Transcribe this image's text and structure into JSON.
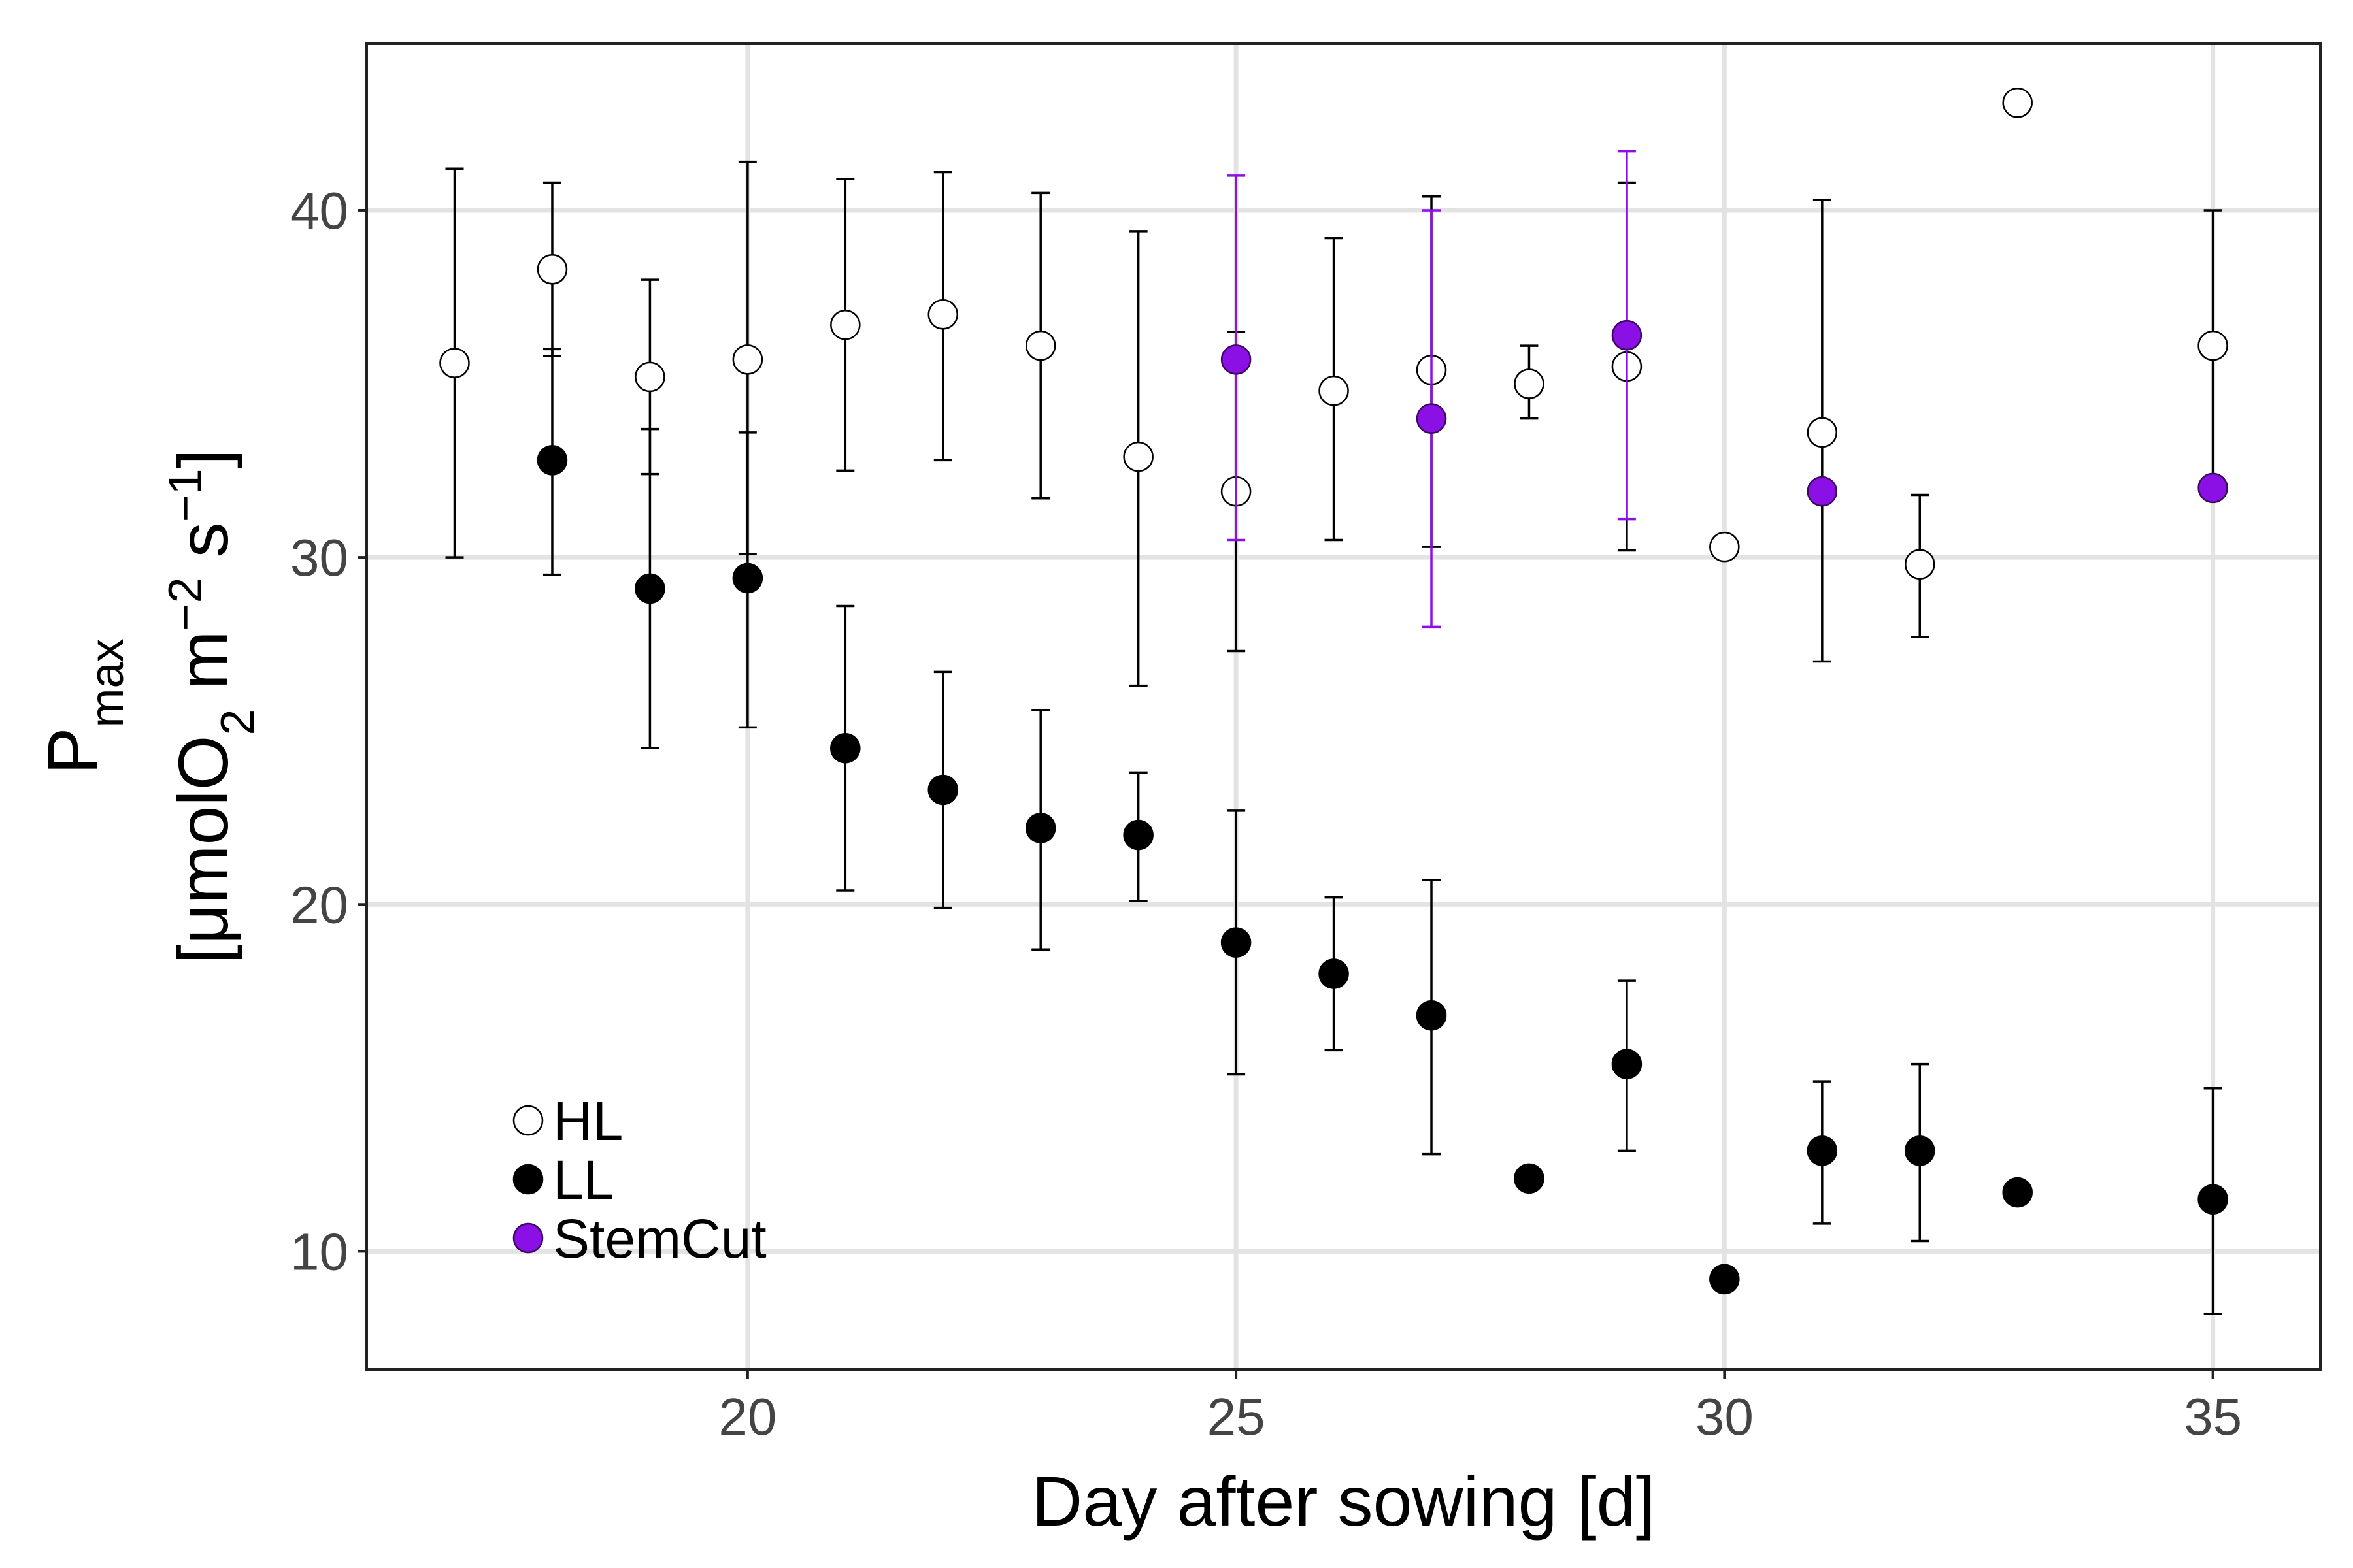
{
  "chart_data": {
    "type": "scatter",
    "xlabel": "Day after sowing [d]",
    "ylabel": {
      "line1_main": "P",
      "line1_sub": "max",
      "line2_prefix": "[μmolO",
      "line2_sub": "2",
      "line2_mid": " m",
      "line2_sup1": "−2",
      "line2_mid2": " s",
      "line2_sup2": "−1",
      "line2_suffix": "]"
    },
    "xlim": [
      16.1,
      36.1
    ],
    "ylim": [
      6.6,
      44.8
    ],
    "xticks": [
      20,
      25,
      30,
      35
    ],
    "yticks": [
      10,
      20,
      30,
      40
    ],
    "grid": true,
    "legend_position": "bottom-left",
    "series": [
      {
        "name": "HL",
        "fill": "#ffffff",
        "stroke": "#000000",
        "error_color": "#000000",
        "points": [
          {
            "x": 17,
            "y": 35.6,
            "lo": 30.0,
            "hi": 41.2
          },
          {
            "x": 18,
            "y": 38.3,
            "lo": 35.8,
            "hi": 40.8
          },
          {
            "x": 19,
            "y": 35.2,
            "lo": 32.4,
            "hi": 38.0
          },
          {
            "x": 20,
            "y": 35.7,
            "lo": 30.1,
            "hi": 41.4
          },
          {
            "x": 21,
            "y": 36.7,
            "lo": 32.5,
            "hi": 40.9
          },
          {
            "x": 22,
            "y": 37.0,
            "lo": 32.8,
            "hi": 41.1
          },
          {
            "x": 23,
            "y": 36.1,
            "lo": 31.7,
            "hi": 40.5
          },
          {
            "x": 24,
            "y": 32.9,
            "lo": 26.3,
            "hi": 39.4
          },
          {
            "x": 25,
            "y": 31.9,
            "lo": 27.3,
            "hi": 36.5
          },
          {
            "x": 26,
            "y": 34.8,
            "lo": 30.5,
            "hi": 39.2
          },
          {
            "x": 27,
            "y": 35.4,
            "lo": 30.3,
            "hi": 40.4
          },
          {
            "x": 28,
            "y": 35.0,
            "lo": 34.0,
            "hi": 36.1
          },
          {
            "x": 29,
            "y": 35.5,
            "lo": 30.2,
            "hi": 40.8
          },
          {
            "x": 30,
            "y": 30.3
          },
          {
            "x": 31,
            "y": 33.6,
            "lo": 27.0,
            "hi": 40.3
          },
          {
            "x": 32,
            "y": 29.8,
            "lo": 27.7,
            "hi": 31.8
          },
          {
            "x": 33,
            "y": 43.1
          },
          {
            "x": 35,
            "y": 36.1,
            "lo": 32.2,
            "hi": 40.0
          }
        ]
      },
      {
        "name": "LL",
        "fill": "#000000",
        "stroke": "#000000",
        "error_color": "#000000",
        "points": [
          {
            "x": 18,
            "y": 32.8,
            "lo": 29.5,
            "hi": 36.0
          },
          {
            "x": 19,
            "y": 29.1,
            "lo": 24.5,
            "hi": 33.7
          },
          {
            "x": 20,
            "y": 29.4,
            "lo": 25.1,
            "hi": 33.6
          },
          {
            "x": 21,
            "y": 24.5,
            "lo": 20.4,
            "hi": 28.6
          },
          {
            "x": 22,
            "y": 23.3,
            "lo": 19.9,
            "hi": 26.7
          },
          {
            "x": 23,
            "y": 22.2,
            "lo": 18.7,
            "hi": 25.6
          },
          {
            "x": 24,
            "y": 22.0,
            "lo": 20.1,
            "hi": 23.8
          },
          {
            "x": 25,
            "y": 18.9,
            "lo": 15.1,
            "hi": 22.7
          },
          {
            "x": 26,
            "y": 18.0,
            "lo": 15.8,
            "hi": 20.2
          },
          {
            "x": 27,
            "y": 16.8,
            "lo": 12.8,
            "hi": 20.7
          },
          {
            "x": 28,
            "y": 12.1
          },
          {
            "x": 29,
            "y": 15.4,
            "lo": 12.9,
            "hi": 17.8
          },
          {
            "x": 30,
            "y": 9.2
          },
          {
            "x": 31,
            "y": 12.9,
            "lo": 10.8,
            "hi": 14.9
          },
          {
            "x": 32,
            "y": 12.9,
            "lo": 10.3,
            "hi": 15.4
          },
          {
            "x": 33,
            "y": 11.7
          },
          {
            "x": 35,
            "y": 11.5,
            "lo": 8.2,
            "hi": 14.7
          }
        ]
      },
      {
        "name": "StemCut",
        "fill": "#8a10e6",
        "stroke": "#3a0a5c",
        "error_color": "#8a10e6",
        "points": [
          {
            "x": 25,
            "y": 35.7,
            "lo": 30.5,
            "hi": 41.0
          },
          {
            "x": 27,
            "y": 34.0,
            "lo": 28.0,
            "hi": 40.0
          },
          {
            "x": 29,
            "y": 36.4,
            "lo": 31.1,
            "hi": 41.7
          },
          {
            "x": 31,
            "y": 31.9
          },
          {
            "x": 35,
            "y": 32.0
          }
        ]
      }
    ]
  }
}
